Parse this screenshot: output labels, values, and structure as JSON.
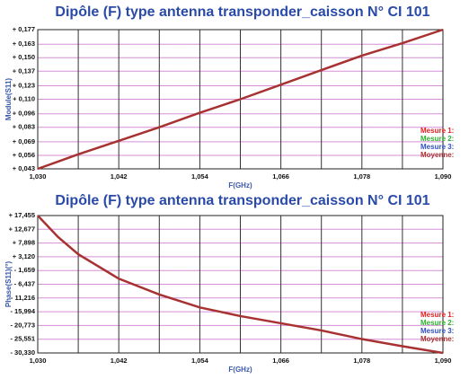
{
  "chart_data": [
    {
      "type": "line",
      "title": "Dipôle (F) type antenna transponder_caisson N° CI 101",
      "xlabel": "F(GHz)",
      "ylabel": "Module(S11)",
      "x": [
        1.03,
        1.033,
        1.036,
        1.042,
        1.048,
        1.054,
        1.06,
        1.066,
        1.072,
        1.078,
        1.084,
        1.09
      ],
      "values": [
        0.043,
        0.05,
        0.057,
        0.07,
        0.083,
        0.097,
        0.11,
        0.124,
        0.138,
        0.152,
        0.164,
        0.177
      ],
      "color": "#a83232",
      "xlim": [
        1.03,
        1.09
      ],
      "xticks": [
        {
          "value": 1.03,
          "label": "1,030"
        },
        {
          "value": 1.042,
          "label": "1,042"
        },
        {
          "value": 1.054,
          "label": "1,054"
        },
        {
          "value": 1.066,
          "label": "1,066"
        },
        {
          "value": 1.078,
          "label": "1,078"
        },
        {
          "value": 1.09,
          "label": "1,090"
        }
      ],
      "xminor": [
        1.036,
        1.048,
        1.06,
        1.072,
        1.084
      ],
      "ylim": [
        0.043,
        0.177
      ],
      "yticks": [
        {
          "value": 0.177,
          "label": "+ 0,177"
        },
        {
          "value": 0.163,
          "label": "+ 0,163"
        },
        {
          "value": 0.15,
          "label": "+ 0,150"
        },
        {
          "value": 0.137,
          "label": "+ 0,137"
        },
        {
          "value": 0.123,
          "label": "+ 0,123"
        },
        {
          "value": 0.11,
          "label": "+ 0,110"
        },
        {
          "value": 0.096,
          "label": "+ 0,096"
        },
        {
          "value": 0.083,
          "label": "+ 0,083"
        },
        {
          "value": 0.069,
          "label": "+ 0,069"
        },
        {
          "value": 0.056,
          "label": "+ 0,056"
        },
        {
          "value": 0.043,
          "label": "+ 0,043"
        }
      ],
      "legend": [
        {
          "name": "Mesure 1:",
          "color": "#e02020"
        },
        {
          "name": "Mesure 2:",
          "color": "#30b030"
        },
        {
          "name": "Mesure 3:",
          "color": "#3050c0"
        },
        {
          "name": "Moyenne:",
          "color": "#a83232"
        }
      ]
    },
    {
      "type": "line",
      "title": "Dipôle (F) type antenna transponder_caisson N° CI 101",
      "xlabel": "F(GHz)",
      "ylabel": "Phase(S11)(°)",
      "x": [
        1.03,
        1.033,
        1.036,
        1.042,
        1.048,
        1.054,
        1.06,
        1.066,
        1.072,
        1.078,
        1.084,
        1.09
      ],
      "values": [
        17.455,
        10,
        4,
        -4.5,
        -10,
        -14.5,
        -17.5,
        -20,
        -22.5,
        -25.5,
        -28,
        -30.33
      ],
      "color": "#a83232",
      "xlim": [
        1.03,
        1.09
      ],
      "xticks": [
        {
          "value": 1.03,
          "label": "1,030"
        },
        {
          "value": 1.042,
          "label": "1,042"
        },
        {
          "value": 1.054,
          "label": "1,054"
        },
        {
          "value": 1.066,
          "label": "1,066"
        },
        {
          "value": 1.078,
          "label": "1,078"
        },
        {
          "value": 1.09,
          "label": "1,090"
        }
      ],
      "xminor": [
        1.036,
        1.048,
        1.06,
        1.072,
        1.084
      ],
      "ylim": [
        -30.33,
        17.455
      ],
      "yticks": [
        {
          "value": 17.455,
          "label": "+ 17,455"
        },
        {
          "value": 12.677,
          "label": "+ 12,677"
        },
        {
          "value": 7.898,
          "label": "+ 7,898"
        },
        {
          "value": 3.12,
          "label": "+ 3,120"
        },
        {
          "value": -1.659,
          "label": "- 1,659"
        },
        {
          "value": -6.437,
          "label": "- 6,437"
        },
        {
          "value": -11.216,
          "label": "- 11,216"
        },
        {
          "value": -15.994,
          "label": "- 15,994"
        },
        {
          "value": -20.773,
          "label": "- 20,773"
        },
        {
          "value": -25.551,
          "label": "- 25,551"
        },
        {
          "value": -30.33,
          "label": "- 30,330"
        }
      ],
      "legend": [
        {
          "name": "Mesure 1:",
          "color": "#e02020"
        },
        {
          "name": "Mesure 2:",
          "color": "#30b030"
        },
        {
          "name": "Mesure 3:",
          "color": "#3050c0"
        },
        {
          "name": "Moyenne:",
          "color": "#a83232"
        }
      ]
    }
  ]
}
